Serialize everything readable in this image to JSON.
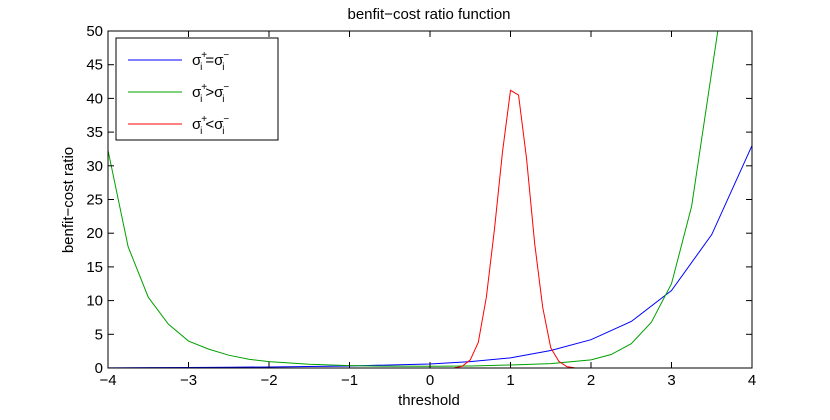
{
  "chart_data": {
    "type": "line",
    "title": "benfit−cost ratio function",
    "xlabel": "threshold",
    "ylabel": "benfit−cost ratio",
    "xlim": [
      -4,
      4
    ],
    "ylim": [
      0,
      50
    ],
    "xticks": [
      -4,
      -3,
      -2,
      -1,
      0,
      1,
      2,
      3,
      4
    ],
    "yticks": [
      0,
      5,
      10,
      15,
      20,
      25,
      30,
      35,
      40,
      45,
      50
    ],
    "grid": false,
    "legend_position": "top-left",
    "series": [
      {
        "name": "σi⁺=σi⁻",
        "color": "#0000ff",
        "x": [
          -4,
          -3.5,
          -3,
          -2.5,
          -2,
          -1.5,
          -1,
          -0.5,
          0,
          0.5,
          1,
          1.5,
          2,
          2.5,
          3,
          3.5,
          4
        ],
        "y": [
          0.02,
          0.05,
          0.08,
          0.12,
          0.15,
          0.22,
          0.3,
          0.45,
          0.6,
          0.95,
          1.5,
          2.6,
          4.2,
          6.9,
          11.5,
          19.8,
          33.0
        ]
      },
      {
        "name": "σi⁺>σi⁻",
        "color": "#00a000",
        "x": [
          -4,
          -3.75,
          -3.5,
          -3.25,
          -3,
          -2.75,
          -2.5,
          -2.25,
          -2,
          -1.5,
          -1,
          -0.5,
          0,
          0.5,
          1,
          1.5,
          2,
          2.25,
          2.5,
          2.75,
          3,
          3.25,
          3.5,
          3.6
        ],
        "y": [
          32.3,
          18.0,
          10.5,
          6.5,
          4.0,
          2.8,
          1.9,
          1.3,
          0.95,
          0.55,
          0.35,
          0.27,
          0.25,
          0.3,
          0.45,
          0.65,
          1.2,
          2.0,
          3.6,
          6.8,
          12.5,
          24.0,
          44.0,
          52.0
        ]
      },
      {
        "name": "σi⁺<σi⁻",
        "color": "#ff0000",
        "x": [
          -4,
          -2,
          0,
          0.3,
          0.4,
          0.5,
          0.6,
          0.7,
          0.8,
          0.9,
          1.0,
          1.1,
          1.2,
          1.3,
          1.4,
          1.5,
          1.6,
          1.7,
          1.8,
          2.0,
          4.0
        ],
        "y": [
          0,
          0,
          0,
          0.02,
          0.25,
          1.2,
          3.8,
          10.5,
          20.5,
          32.0,
          41.2,
          40.5,
          31.0,
          18.5,
          9.0,
          3.0,
          1.0,
          0.2,
          0.02,
          0,
          0
        ]
      }
    ]
  }
}
